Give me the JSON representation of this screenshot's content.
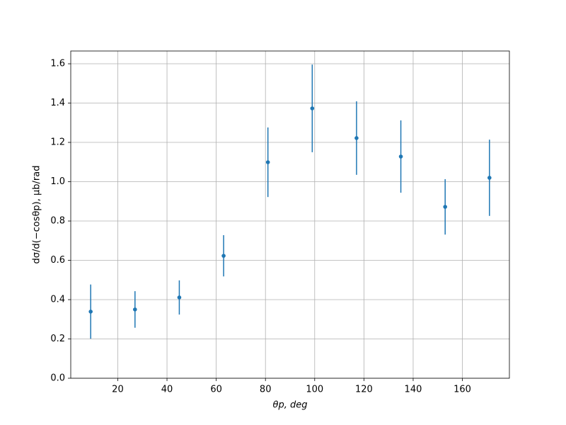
{
  "chart_data": {
    "type": "errorbar",
    "x_label": "θp, deg",
    "y_label": "dσ/d(−cosθp), μb/rad",
    "x": [
      9,
      27,
      45,
      63,
      81,
      99,
      117,
      135,
      153,
      171
    ],
    "series": [
      {
        "color": "#1f77b4",
        "values": [
          0.339,
          0.35,
          0.411,
          0.623,
          1.099,
          1.373,
          1.222,
          1.128,
          0.872,
          1.02
        ],
        "errors": [
          0.138,
          0.093,
          0.087,
          0.105,
          0.177,
          0.223,
          0.187,
          0.184,
          0.141,
          0.194
        ]
      }
    ],
    "xlim": [
      0.9,
      179.1
    ],
    "ylim": [
      0,
      1.665
    ],
    "xticks": [
      20,
      40,
      60,
      80,
      100,
      120,
      140,
      160
    ],
    "yticks": [
      {
        "value": 0,
        "label": "0.0"
      },
      {
        "value": 0.2,
        "label": "0.2"
      },
      {
        "value": 0.4,
        "label": "0.4"
      },
      {
        "value": 0.6,
        "label": "0.6"
      },
      {
        "value": 0.8,
        "label": "0.8"
      },
      {
        "value": 1,
        "label": "1.0"
      },
      {
        "value": 1.2,
        "label": "1.2"
      },
      {
        "value": 1.4,
        "label": "1.4"
      },
      {
        "value": 1.6,
        "label": "1.6"
      }
    ],
    "grid": true
  }
}
